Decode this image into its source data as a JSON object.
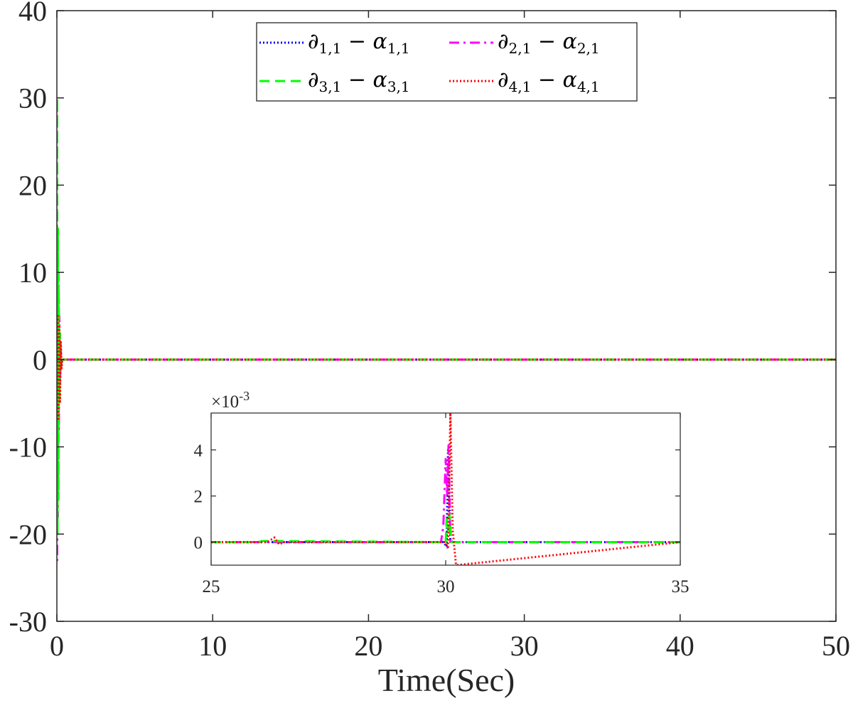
{
  "chart_data": [
    {
      "type": "line",
      "title": "",
      "xlabel": "Time(Sec)",
      "ylabel": "",
      "xlim": [
        0,
        50
      ],
      "ylim": [
        -30,
        40
      ],
      "xticks": [
        0,
        10,
        20,
        30,
        40,
        50
      ],
      "xtick_labels": [
        "0",
        "10",
        "20",
        "30",
        "40",
        "50"
      ],
      "yticks": [
        -30,
        -20,
        -10,
        0,
        10,
        20,
        30,
        40
      ],
      "ytick_labels": [
        "-30",
        "-20",
        "-10",
        "0",
        "10",
        "20",
        "30",
        "40"
      ],
      "grid": false,
      "legend": {
        "position": "top-center",
        "columns": 2,
        "entries": [
          {
            "series": "s1",
            "main": "∂",
            "sub": "1,1",
            "minus": " − ",
            "main2": "α",
            "sub2": "1,1"
          },
          {
            "series": "s2",
            "main": "∂",
            "sub": "2,1",
            "minus": " − ",
            "main2": "α",
            "sub2": "2,1"
          },
          {
            "series": "s3",
            "main": "∂",
            "sub": "3,1",
            "minus": " − ",
            "main2": "α",
            "sub2": "3,1"
          },
          {
            "series": "s4",
            "main": "∂",
            "sub": "4,1",
            "minus": " − ",
            "main2": "α",
            "sub2": "4,1"
          }
        ]
      },
      "series": [
        {
          "id": "s1",
          "color": "#0000ff",
          "style": "dotted",
          "x": [
            0,
            0.02,
            0.05,
            0.08,
            0.1,
            0.13,
            0.16,
            0.2,
            0.25,
            0.3,
            50
          ],
          "y": [
            0,
            6,
            -10,
            8,
            -6,
            5,
            -3,
            2,
            -1,
            0,
            0
          ]
        },
        {
          "id": "s2",
          "color": "#ff00ff",
          "style": "dashdot",
          "x": [
            0,
            0.02,
            0.04,
            0.07,
            0.1,
            0.13,
            0.16,
            0.2,
            0.25,
            0.3,
            50
          ],
          "y": [
            0,
            -23,
            12,
            -18,
            10,
            -8,
            5,
            -3,
            1,
            0,
            0
          ]
        },
        {
          "id": "s3",
          "color": "#00ff00",
          "style": "dashed",
          "x": [
            0,
            0.02,
            0.04,
            0.07,
            0.1,
            0.13,
            0.16,
            0.2,
            0.25,
            0.3,
            50
          ],
          "y": [
            0,
            30,
            -20,
            15,
            -16,
            7,
            -5,
            3,
            -1,
            0,
            0
          ]
        },
        {
          "id": "s4",
          "color": "#ff0000",
          "style": "dotted",
          "x": [
            0,
            0.05,
            0.1,
            0.15,
            0.2,
            0.25,
            0.3,
            0.35,
            50
          ],
          "y": [
            0,
            5,
            -7,
            4,
            -5,
            2,
            -1,
            0,
            0
          ]
        }
      ]
    },
    {
      "type": "line",
      "title": "",
      "xlabel": "",
      "ylabel": "",
      "xlim": [
        25,
        35
      ],
      "ylim": [
        -0.001,
        0.0056
      ],
      "xticks": [
        25,
        30,
        35
      ],
      "xtick_labels": [
        "25",
        "30",
        "35"
      ],
      "yticks": [
        0,
        0.002,
        0.004
      ],
      "ytick_labels": [
        "0",
        "2",
        "4"
      ],
      "exponent_label": "×10",
      "exponent_power": "-3",
      "grid": false,
      "series": [
        {
          "id": "s1",
          "color": "#0000ff",
          "style": "dotted",
          "x": [
            25,
            26.8,
            27,
            29.95,
            30.02,
            30.05,
            30.1,
            30.15,
            35
          ],
          "y": [
            0,
            0,
            0,
            0,
            -0.0002,
            0.004,
            0.0001,
            0,
            0
          ]
        },
        {
          "id": "s2",
          "color": "#ff00ff",
          "style": "dashdot",
          "x": [
            25,
            29.9,
            29.95,
            30,
            30.03,
            30.06,
            30.1,
            35
          ],
          "y": [
            0,
            0,
            0.0007,
            0.0036,
            0.002,
            0.0042,
            0,
            0
          ]
        },
        {
          "id": "s3",
          "color": "#00ff00",
          "style": "dashed",
          "x": [
            25,
            26,
            26.1,
            30,
            30.02,
            30.05,
            30.08,
            30.12,
            35
          ],
          "y": [
            0,
            0,
            5e-05,
            0,
            0.001,
            0.0005,
            0.0012,
            0,
            0
          ]
        },
        {
          "id": "s4",
          "color": "#ff0000",
          "style": "dotted",
          "x": [
            25,
            26.2,
            26.35,
            26.45,
            26.55,
            30,
            30.05,
            30.1,
            30.15,
            30.22,
            35
          ],
          "y": [
            0,
            0,
            0.0002,
            -0.0001,
            0,
            0,
            -0.0003,
            0.0056,
            0.0005,
            -0.001,
            0
          ]
        }
      ]
    }
  ]
}
